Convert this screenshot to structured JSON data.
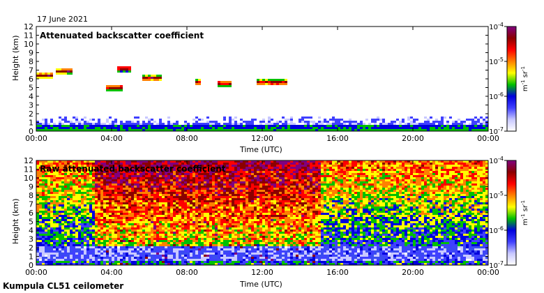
{
  "header": {
    "date": "17 June 2021"
  },
  "footer": {
    "site": "Kumpula CL51 ceilometer"
  },
  "colors": {
    "colormap": [
      "#ffffff",
      "#c8c8ff",
      "#4040ff",
      "#0000dd",
      "#00c000",
      "#ffff00",
      "#ff8000",
      "#ff0000",
      "#8b0000",
      "#800080"
    ]
  },
  "chart_data": [
    {
      "type": "heatmap",
      "title": "Attenuated backscatter coefficient",
      "xlabel": "Time (UTC)",
      "ylabel": "Height (km)",
      "x_ticks": [
        "00:00",
        "04:00",
        "08:00",
        "12:00",
        "16:00",
        "20:00",
        "00:00"
      ],
      "y_ticks": [
        "0",
        "1",
        "2",
        "3",
        "4",
        "5",
        "6",
        "7",
        "8",
        "9",
        "10",
        "11",
        "12"
      ],
      "ylim": [
        0,
        12
      ],
      "xlim_hours": [
        0,
        24
      ],
      "colorbar": {
        "labels": [
          "10^-4",
          "10^-5",
          "10^-6",
          "10^-7"
        ],
        "unit": "m^-1 sr^-1",
        "scale": "log",
        "range": [
          1e-07,
          0.0001
        ]
      },
      "features": [
        {
          "name": "boundary layer",
          "t_start": 0,
          "t_end": 24,
          "height_top_km": 1.8
        },
        {
          "name": "cloud",
          "t_start": 0.0,
          "t_end": 0.8,
          "height_km": 6.5
        },
        {
          "name": "cloud",
          "t_start": 1.0,
          "t_end": 1.8,
          "height_km": 7.0
        },
        {
          "name": "cloud",
          "t_start": 3.7,
          "t_end": 4.5,
          "height_km": 5.1
        },
        {
          "name": "cloud",
          "t_start": 4.2,
          "t_end": 4.9,
          "height_km": 7.3
        },
        {
          "name": "cloud",
          "t_start": 5.6,
          "t_end": 6.6,
          "height_km": 6.2
        },
        {
          "name": "cloud",
          "t_start": 8.3,
          "t_end": 8.7,
          "height_km": 5.7
        },
        {
          "name": "cloud",
          "t_start": 9.6,
          "t_end": 10.3,
          "height_km": 5.6
        },
        {
          "name": "cloud",
          "t_start": 11.6,
          "t_end": 13.2,
          "height_km": 5.7
        }
      ]
    },
    {
      "type": "heatmap",
      "title": "Raw attenuated backscatter coefficient",
      "xlabel": "Time (UTC)",
      "ylabel": "Height (km)",
      "x_ticks": [
        "00:00",
        "04:00",
        "08:00",
        "12:00",
        "16:00",
        "20:00",
        "00:00"
      ],
      "y_ticks": [
        "0",
        "1",
        "2",
        "3",
        "4",
        "5",
        "6",
        "7",
        "8",
        "9",
        "10",
        "11",
        "12"
      ],
      "ylim": [
        0,
        12
      ],
      "xlim_hours": [
        0,
        24
      ],
      "colorbar": {
        "labels": [
          "10^-4",
          "10^-5",
          "10^-6",
          "10^-7"
        ],
        "unit": "m^-1 sr^-1",
        "scale": "log",
        "range": [
          1e-07,
          0.0001
        ]
      },
      "features": [
        {
          "name": "daytime noise",
          "t_start": 3.0,
          "t_end": 15.0
        },
        {
          "name": "cloud",
          "t_start": 3.7,
          "t_end": 4.5,
          "height_km": 5.1
        },
        {
          "name": "cloud",
          "t_start": 4.2,
          "t_end": 4.9,
          "height_km": 7.3
        },
        {
          "name": "cloud",
          "t_start": 8.3,
          "t_end": 8.7,
          "height_km": 5.7
        },
        {
          "name": "cloud",
          "t_start": 11.6,
          "t_end": 13.2,
          "height_km": 5.7
        }
      ]
    }
  ]
}
